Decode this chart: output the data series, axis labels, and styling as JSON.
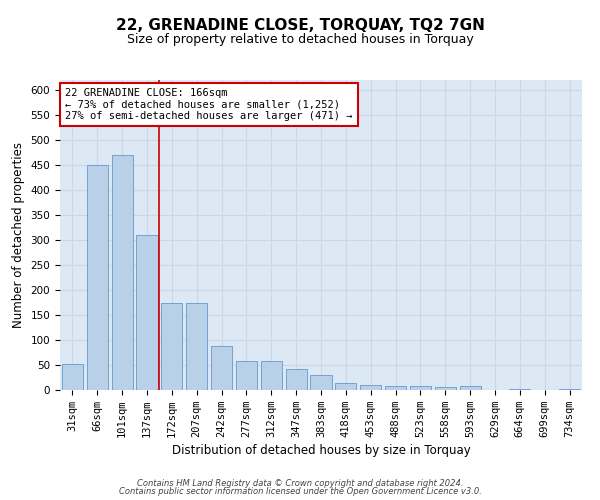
{
  "title": "22, GRENADINE CLOSE, TORQUAY, TQ2 7GN",
  "subtitle": "Size of property relative to detached houses in Torquay",
  "xlabel": "Distribution of detached houses by size in Torquay",
  "ylabel": "Number of detached properties",
  "footer_line1": "Contains HM Land Registry data © Crown copyright and database right 2024.",
  "footer_line2": "Contains public sector information licensed under the Open Government Licence v3.0.",
  "categories": [
    "31sqm",
    "66sqm",
    "101sqm",
    "137sqm",
    "172sqm",
    "207sqm",
    "242sqm",
    "277sqm",
    "312sqm",
    "347sqm",
    "383sqm",
    "418sqm",
    "453sqm",
    "488sqm",
    "523sqm",
    "558sqm",
    "593sqm",
    "629sqm",
    "664sqm",
    "699sqm",
    "734sqm"
  ],
  "values": [
    53,
    450,
    470,
    310,
    175,
    175,
    88,
    58,
    58,
    42,
    30,
    15,
    10,
    8,
    8,
    7,
    8,
    0,
    3,
    0,
    3
  ],
  "bar_color": "#b8d0e8",
  "bar_edge_color": "#6699cc",
  "grid_color": "#c8d8e8",
  "background_color": "#dce8f4",
  "vline_color": "#cc0000",
  "annotation_text": "22 GRENADINE CLOSE: 166sqm\n← 73% of detached houses are smaller (1,252)\n27% of semi-detached houses are larger (471) →",
  "annotation_box_color": "#ffffff",
  "annotation_box_edge_color": "#cc0000",
  "ylim": [
    0,
    620
  ],
  "yticks": [
    0,
    50,
    100,
    150,
    200,
    250,
    300,
    350,
    400,
    450,
    500,
    550,
    600
  ],
  "title_fontsize": 11,
  "subtitle_fontsize": 9,
  "xlabel_fontsize": 8.5,
  "ylabel_fontsize": 8.5,
  "tick_fontsize": 7.5,
  "annotation_fontsize": 7.5
}
